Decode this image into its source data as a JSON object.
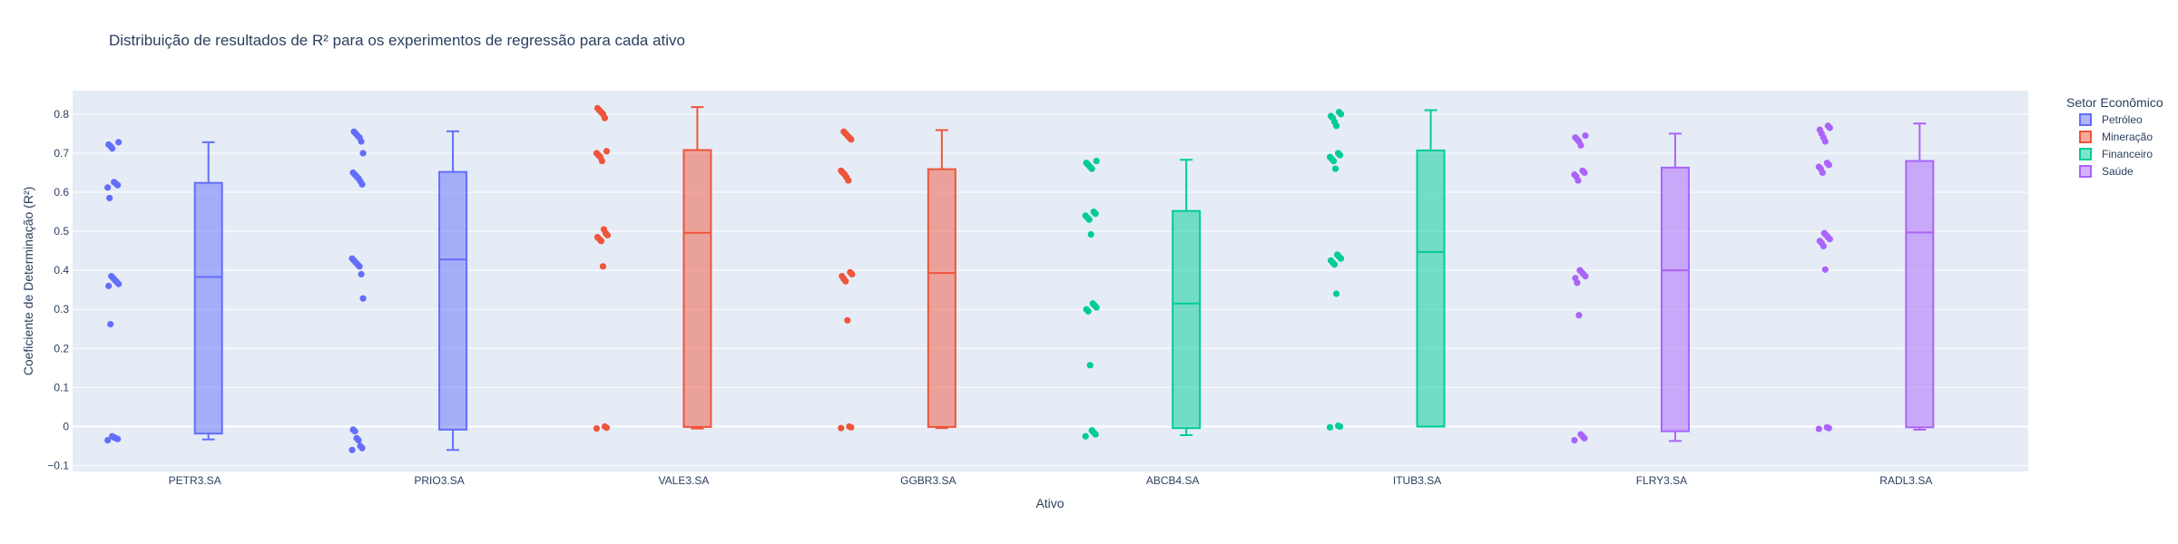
{
  "chart_data": {
    "type": "box",
    "title": "Distribuição de resultados de R² para os experimentos de regressão para cada ativo",
    "xlabel": "Ativo",
    "ylabel": "Coeficiente de Determinação (R²)",
    "ylim": [
      -0.115,
      0.86
    ],
    "yticks": [
      -0.1,
      0,
      0.1,
      0.2,
      0.3,
      0.4,
      0.5,
      0.6,
      0.7,
      0.8
    ],
    "ytick_labels": [
      "−0.1",
      "0",
      "0.1",
      "0.2",
      "0.3",
      "0.4",
      "0.5",
      "0.6",
      "0.7",
      "0.8"
    ],
    "categories": [
      "PETR3.SA",
      "PRIO3.SA",
      "VALE3.SA",
      "GGBR3.SA",
      "ABCB4.SA",
      "ITUB3.SA",
      "FLRY3.SA",
      "RADL3.SA"
    ],
    "legend": {
      "title": "Setor Econômico",
      "position": "top-right",
      "items": [
        {
          "name": "Petróleo",
          "color": "#636efa"
        },
        {
          "name": "Mineração",
          "color": "#ef553b"
        },
        {
          "name": "Financeiro",
          "color": "#00cc96"
        },
        {
          "name": "Saúde",
          "color": "#ab63fa"
        }
      ]
    },
    "boxes": [
      {
        "category": "PETR3.SA",
        "sector": "Petróleo",
        "color": "#636efa",
        "min": -0.033,
        "q1": -0.018,
        "median": 0.383,
        "q3": 0.624,
        "max": 0.728,
        "points": [
          -0.035,
          -0.032,
          -0.03,
          -0.028,
          -0.025,
          0.262,
          0.36,
          0.365,
          0.37,
          0.375,
          0.38,
          0.385,
          0.585,
          0.612,
          0.618,
          0.622,
          0.626,
          0.712,
          0.718,
          0.722,
          0.728
        ]
      },
      {
        "category": "PRIO3.SA",
        "sector": "Petróleo",
        "color": "#636efa",
        "min": -0.06,
        "q1": -0.008,
        "median": 0.428,
        "q3": 0.652,
        "max": 0.756,
        "points": [
          -0.06,
          -0.055,
          -0.05,
          -0.035,
          -0.03,
          -0.012,
          -0.008,
          0.328,
          0.39,
          0.41,
          0.415,
          0.42,
          0.425,
          0.43,
          0.62,
          0.628,
          0.635,
          0.64,
          0.645,
          0.65,
          0.7,
          0.73,
          0.74,
          0.745,
          0.75,
          0.755
        ]
      },
      {
        "category": "VALE3.SA",
        "sector": "Mineração",
        "color": "#ef553b",
        "min": -0.005,
        "q1": -0.001,
        "median": 0.496,
        "q3": 0.708,
        "max": 0.818,
        "points": [
          -0.005,
          -0.003,
          0.0,
          0.41,
          0.475,
          0.48,
          0.485,
          0.49,
          0.495,
          0.505,
          0.68,
          0.69,
          0.695,
          0.7,
          0.705,
          0.79,
          0.8,
          0.805,
          0.81,
          0.815
        ]
      },
      {
        "category": "GGBR3.SA",
        "sector": "Mineração",
        "color": "#ef553b",
        "min": -0.004,
        "q1": -0.001,
        "median": 0.393,
        "q3": 0.659,
        "max": 0.759,
        "points": [
          -0.004,
          -0.002,
          0.0,
          0.272,
          0.372,
          0.378,
          0.385,
          0.39,
          0.395,
          0.63,
          0.638,
          0.645,
          0.65,
          0.655,
          0.735,
          0.74,
          0.745,
          0.75,
          0.755
        ]
      },
      {
        "category": "ABCB4.SA",
        "sector": "Financeiro",
        "color": "#00cc96",
        "min": -0.022,
        "q1": -0.004,
        "median": 0.315,
        "q3": 0.552,
        "max": 0.683,
        "points": [
          -0.025,
          -0.02,
          -0.015,
          -0.01,
          0.157,
          0.295,
          0.3,
          0.305,
          0.31,
          0.315,
          0.492,
          0.53,
          0.535,
          0.54,
          0.545,
          0.55,
          0.66,
          0.665,
          0.67,
          0.675,
          0.68
        ]
      },
      {
        "category": "ITUB3.SA",
        "sector": "Financeiro",
        "color": "#00cc96",
        "min": 0.0,
        "q1": 0.0,
        "median": 0.447,
        "q3": 0.707,
        "max": 0.81,
        "points": [
          -0.002,
          0.0,
          0.002,
          0.34,
          0.415,
          0.42,
          0.425,
          0.43,
          0.435,
          0.44,
          0.66,
          0.68,
          0.685,
          0.69,
          0.695,
          0.7,
          0.77,
          0.78,
          0.79,
          0.795,
          0.8,
          0.805
        ]
      },
      {
        "category": "FLRY3.SA",
        "sector": "Saúde",
        "color": "#ab63fa",
        "min": -0.037,
        "q1": -0.012,
        "median": 0.4,
        "q3": 0.663,
        "max": 0.75,
        "points": [
          -0.035,
          -0.03,
          -0.025,
          -0.02,
          0.285,
          0.368,
          0.38,
          0.385,
          0.39,
          0.395,
          0.4,
          0.63,
          0.64,
          0.645,
          0.65,
          0.655,
          0.72,
          0.73,
          0.735,
          0.74,
          0.745
        ]
      },
      {
        "category": "RADL3.SA",
        "sector": "Saúde",
        "color": "#ab63fa",
        "min": -0.008,
        "q1": -0.002,
        "median": 0.497,
        "q3": 0.68,
        "max": 0.776,
        "points": [
          -0.006,
          -0.004,
          -0.002,
          0.402,
          0.462,
          0.47,
          0.475,
          0.48,
          0.485,
          0.49,
          0.495,
          0.65,
          0.66,
          0.665,
          0.67,
          0.675,
          0.73,
          0.74,
          0.75,
          0.76,
          0.765,
          0.77
        ]
      }
    ]
  }
}
